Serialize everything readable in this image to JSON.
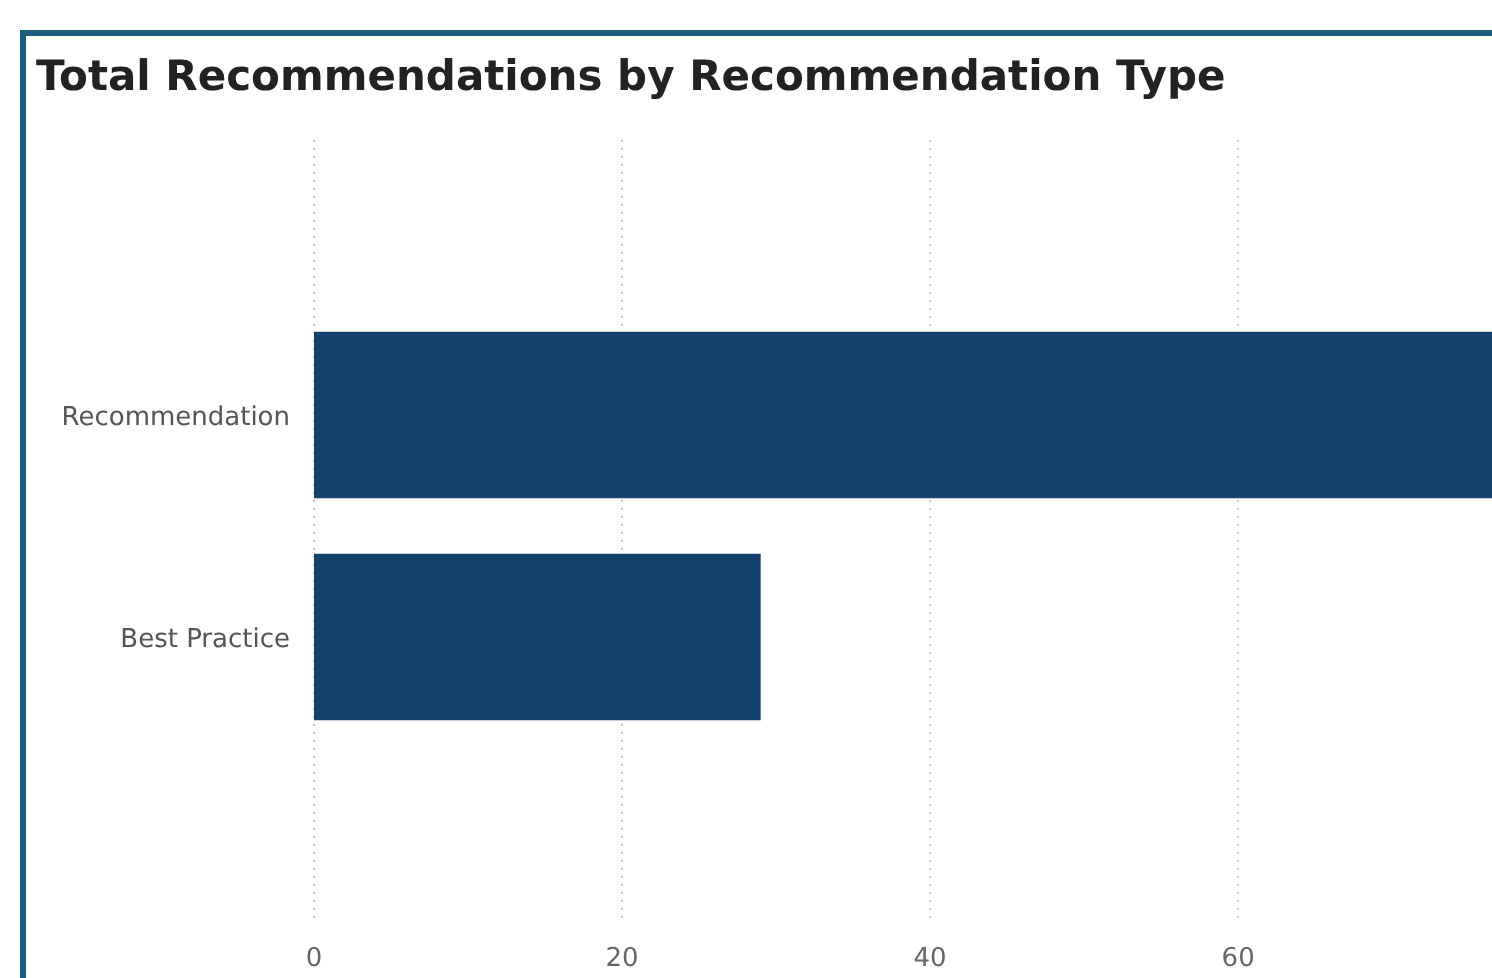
{
  "chart_data": {
    "type": "bar",
    "orientation": "horizontal",
    "title": "Total Recommendations by Recommendation Type",
    "categories": [
      "Recommendation",
      "Best Practice"
    ],
    "values": [
      77,
      29
    ],
    "color": "#13426b",
    "xlim": [
      0,
      77
    ],
    "xticks": [
      0,
      20,
      40,
      60
    ],
    "grid": "x"
  }
}
